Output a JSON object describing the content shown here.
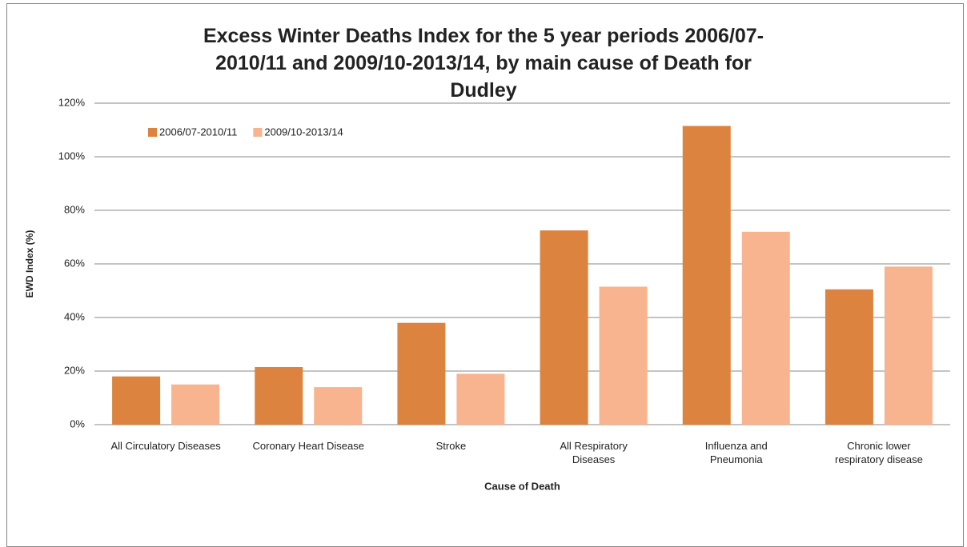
{
  "chart_data": {
    "type": "bar",
    "title": "Excess Winter Deaths Index for the 5 year periods 2006/07-2010/11 and 2009/10-2013/14,  by main cause of Death for Dudley",
    "x_label": "Cause of Death",
    "y_label": "EWD Index (%)",
    "categories": [
      "All Circulatory Diseases",
      "Coronary Heart Disease",
      "Stroke",
      "All Respiratory Diseases",
      "Influenza and Pneumonia",
      "Chronic lower respiratory disease"
    ],
    "series": [
      {
        "name": "2006/07-2010/11",
        "color": "#dc843f",
        "values": [
          18,
          21.5,
          38,
          72.5,
          111.5,
          50.5
        ]
      },
      {
        "name": "2009/10-2013/14",
        "color": "#f8b48e",
        "values": [
          15,
          14,
          19,
          51.5,
          72,
          59
        ]
      }
    ],
    "ylim": [
      0,
      120
    ],
    "yticks": [
      {
        "value": 0,
        "label": "0%"
      },
      {
        "value": 20,
        "label": "20%"
      },
      {
        "value": 40,
        "label": "40%"
      },
      {
        "value": 60,
        "label": "60%"
      },
      {
        "value": 80,
        "label": "80%"
      },
      {
        "value": 100,
        "label": "100%"
      },
      {
        "value": 120,
        "label": "120%"
      }
    ],
    "grid": true,
    "legend": "top-left"
  }
}
